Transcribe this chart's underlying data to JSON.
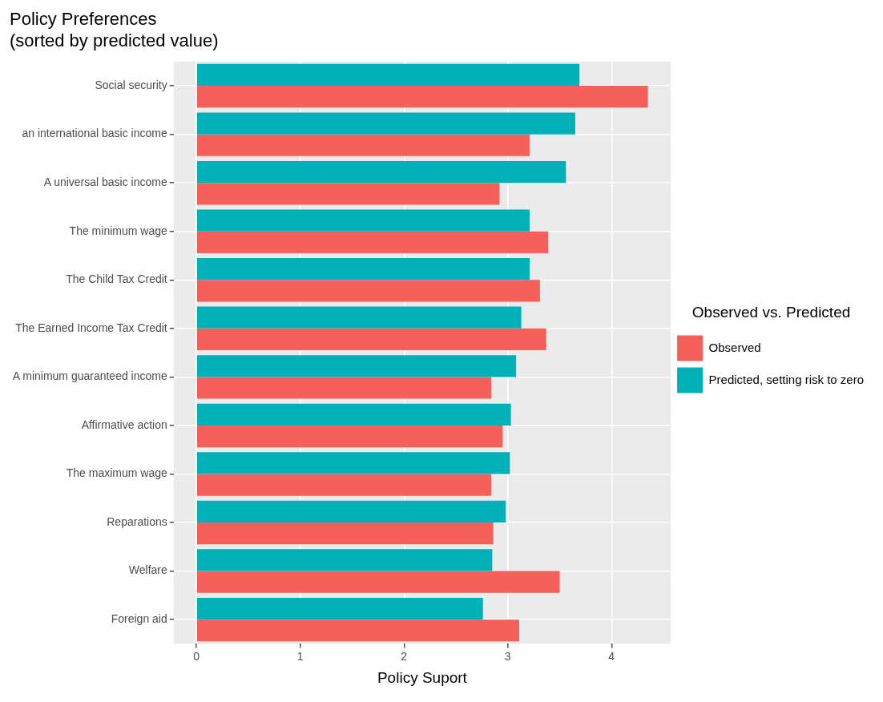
{
  "chart_data": {
    "type": "bar",
    "orientation": "horizontal",
    "title": "Policy Preferences\n(sorted by predicted value)",
    "xlabel": "Policy Suport",
    "legend_title": "Observed vs. Predicted",
    "categories": [
      "Social security",
      "an international basic income",
      "A universal basic income",
      "The minimum wage",
      "The Child Tax Credit",
      "The Earned Income Tax Credit",
      "A minimum guaranteed income",
      "Affirmative action",
      "The maximum wage",
      "Reparations",
      "Welfare",
      "Foreign aid"
    ],
    "series": [
      {
        "name": "Observed",
        "color": "#f5605a",
        "values": [
          4.35,
          3.21,
          2.92,
          3.39,
          3.31,
          3.37,
          2.84,
          2.95,
          2.84,
          2.86,
          3.5,
          3.11
        ]
      },
      {
        "name": "Predicted, setting risk to zero",
        "color": "#00b0b8",
        "values": [
          3.69,
          3.65,
          3.56,
          3.21,
          3.21,
          3.13,
          3.08,
          3.03,
          3.02,
          2.98,
          2.85,
          2.76
        ]
      }
    ],
    "xlim": [
      -0.22,
      4.57
    ],
    "xticks": [
      0,
      1,
      2,
      3,
      4
    ],
    "grid": true,
    "legend": "right"
  }
}
